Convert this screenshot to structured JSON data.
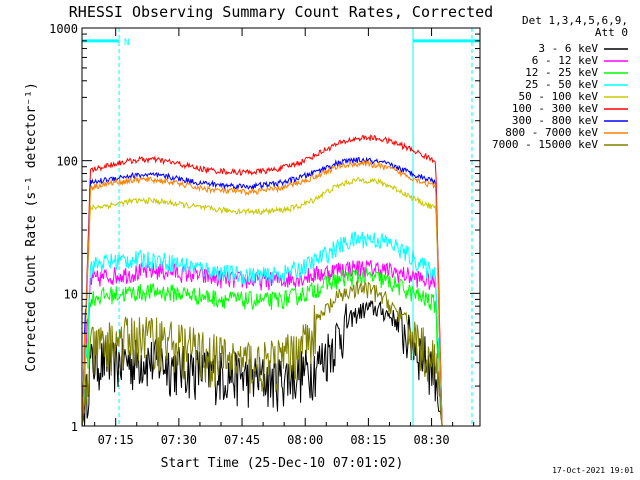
{
  "chart_data": {
    "type": "line",
    "title": "RHESSI Observing Summary Count Rates, Corrected",
    "xlabel": "Start Time (25-Dec-10 07:01:02)",
    "ylabel": "Corrected Count Rate (s⁻¹ detector⁻¹)",
    "y_scale": "log",
    "ylim": [
      1,
      1000
    ],
    "xlim_minutes": [
      7.0,
      101.5
    ],
    "x_ticks": [
      {
        "label": "07:15",
        "minute": 15
      },
      {
        "label": "07:30",
        "minute": 30
      },
      {
        "label": "07:45",
        "minute": 45
      },
      {
        "label": "08:00",
        "minute": 60
      },
      {
        "label": "08:15",
        "minute": 75
      },
      {
        "label": "08:30",
        "minute": 90
      }
    ],
    "y_ticks": [
      {
        "label": "1",
        "value": 1
      },
      {
        "label": "10",
        "value": 10
      },
      {
        "label": "100",
        "value": 100
      },
      {
        "label": "1000",
        "value": 1000
      }
    ],
    "legend_header": [
      "Det 1,3,4,5,6,9,",
      "Att 0"
    ],
    "legend_placement": "right",
    "series": [
      {
        "name": "3 - 6 keV",
        "color": "#000000",
        "x": [
          7.0,
          9,
          11,
          13,
          15,
          17,
          19,
          21,
          23,
          25,
          27,
          29,
          31,
          33,
          35,
          37,
          39,
          41,
          43,
          45,
          47,
          49,
          51,
          53,
          55,
          57,
          59,
          61,
          63,
          65,
          67,
          69,
          71,
          73,
          75,
          77,
          79,
          81,
          83,
          85,
          87,
          89,
          91,
          92.5
        ],
        "y": [
          1.0,
          3.0,
          3.2,
          3.1,
          3.0,
          3.2,
          3.1,
          3.3,
          3.2,
          3.1,
          3.0,
          2.9,
          2.8,
          2.8,
          2.7,
          2.6,
          2.6,
          2.5,
          2.5,
          2.4,
          2.4,
          2.4,
          2.3,
          2.3,
          2.4,
          2.5,
          2.6,
          2.7,
          3.0,
          3.6,
          4.5,
          5.5,
          6.5,
          7.3,
          7.8,
          7.6,
          7.2,
          6.5,
          5.5,
          4.6,
          3.8,
          3.2,
          2.6,
          1.0
        ]
      },
      {
        "name": "6 - 12 keV",
        "color": "#ff00ff",
        "x": [
          7.0,
          9,
          11,
          13,
          15,
          17,
          19,
          21,
          23,
          25,
          27,
          29,
          31,
          33,
          35,
          37,
          39,
          41,
          43,
          45,
          47,
          49,
          51,
          53,
          55,
          57,
          59,
          61,
          63,
          65,
          67,
          69,
          71,
          73,
          75,
          77,
          79,
          81,
          83,
          85,
          87,
          89,
          91,
          92.5
        ],
        "y": [
          1.0,
          12.5,
          13.0,
          13.5,
          13.7,
          14.0,
          14.2,
          14.5,
          14.7,
          14.8,
          14.7,
          14.5,
          14.2,
          14.0,
          13.6,
          13.3,
          13.0,
          12.8,
          12.7,
          12.6,
          12.6,
          12.5,
          12.5,
          12.6,
          12.7,
          13.0,
          13.2,
          13.6,
          14.0,
          14.5,
          15.0,
          15.4,
          15.6,
          15.7,
          15.6,
          15.4,
          15.0,
          14.5,
          14.0,
          13.5,
          13.0,
          12.5,
          12.0,
          1.0
        ]
      },
      {
        "name": "12 - 25 keV",
        "color": "#00ff00",
        "x": [
          7.0,
          9,
          11,
          13,
          15,
          17,
          19,
          21,
          23,
          25,
          27,
          29,
          31,
          33,
          35,
          37,
          39,
          41,
          43,
          45,
          47,
          49,
          51,
          53,
          55,
          57,
          59,
          61,
          63,
          65,
          67,
          69,
          71,
          73,
          75,
          77,
          79,
          81,
          83,
          85,
          87,
          89,
          91,
          92.5
        ],
        "y": [
          1.0,
          9.2,
          9.5,
          9.7,
          9.9,
          10.0,
          10.1,
          10.2,
          10.3,
          10.3,
          10.2,
          10.1,
          10.0,
          9.8,
          9.6,
          9.4,
          9.2,
          9.1,
          9.0,
          8.9,
          8.9,
          8.8,
          8.8,
          8.9,
          9.1,
          9.4,
          9.8,
          10.3,
          11.0,
          11.8,
          12.5,
          13.0,
          13.3,
          13.5,
          13.3,
          13.0,
          12.4,
          11.8,
          11.0,
          10.2,
          9.5,
          8.9,
          8.3,
          1.0
        ]
      },
      {
        "name": "25 - 50 keV",
        "color": "#00ffff",
        "x": [
          7.0,
          9,
          11,
          13,
          15,
          17,
          19,
          21,
          23,
          25,
          27,
          29,
          31,
          33,
          35,
          37,
          39,
          41,
          43,
          45,
          47,
          49,
          51,
          53,
          55,
          57,
          59,
          61,
          63,
          65,
          67,
          69,
          71,
          73,
          75,
          77,
          79,
          81,
          83,
          85,
          87,
          89,
          91,
          92.5
        ],
        "y": [
          1.0,
          16.0,
          16.8,
          17.3,
          17.6,
          17.8,
          18.0,
          18.1,
          18.0,
          17.8,
          17.5,
          17.0,
          16.5,
          16.0,
          15.5,
          15.0,
          14.6,
          14.2,
          14.0,
          13.8,
          13.7,
          13.6,
          13.6,
          13.8,
          14.2,
          14.8,
          15.6,
          16.6,
          18.0,
          19.8,
          21.8,
          23.5,
          25.0,
          25.8,
          26.0,
          25.5,
          24.5,
          23.0,
          21.0,
          19.0,
          17.0,
          15.3,
          14.0,
          1.0
        ]
      },
      {
        "name": "50 - 100 keV",
        "color": "#c8c800",
        "x": [
          7.0,
          9,
          11,
          13,
          15,
          17,
          19,
          21,
          23,
          25,
          27,
          29,
          31,
          33,
          35,
          37,
          39,
          41,
          43,
          45,
          47,
          49,
          51,
          53,
          55,
          57,
          59,
          61,
          63,
          65,
          67,
          69,
          71,
          73,
          75,
          77,
          79,
          81,
          83,
          85,
          87,
          89,
          91,
          92.5
        ],
        "y": [
          1.0,
          44.0,
          45.0,
          46.0,
          47.0,
          48.5,
          49.5,
          50.0,
          50.0,
          49.5,
          48.5,
          47.5,
          46.5,
          45.5,
          44.5,
          43.5,
          42.8,
          42.2,
          41.8,
          41.6,
          41.5,
          41.5,
          41.6,
          42.0,
          42.8,
          44.0,
          46.0,
          49.0,
          53.0,
          58.0,
          63.0,
          67.0,
          70.0,
          71.5,
          71.0,
          69.5,
          66.5,
          62.5,
          58.0,
          53.5,
          49.5,
          46.5,
          44.0,
          1.0
        ]
      },
      {
        "name": "100 - 300 keV",
        "color": "#ff0000",
        "x": [
          7.0,
          9,
          11,
          13,
          15,
          17,
          19,
          21,
          23,
          25,
          27,
          29,
          31,
          33,
          35,
          37,
          39,
          41,
          43,
          45,
          47,
          49,
          51,
          53,
          55,
          57,
          59,
          61,
          63,
          65,
          67,
          69,
          71,
          73,
          75,
          77,
          79,
          81,
          83,
          85,
          87,
          89,
          91,
          92.5
        ],
        "y": [
          1.0,
          85,
          88,
          92,
          95,
          98,
          100,
          102,
          102,
          101,
          99,
          96,
          93,
          90,
          87,
          85,
          84,
          83,
          82,
          82,
          82,
          83,
          84,
          86,
          89,
          93,
          98,
          105,
          113,
          122,
          131,
          138,
          144,
          148,
          149,
          147,
          143,
          137,
          130,
          122,
          114,
          106,
          99,
          1.0
        ]
      },
      {
        "name": "300 - 800 keV",
        "color": "#0000ff",
        "x": [
          7.0,
          9,
          11,
          13,
          15,
          17,
          19,
          21,
          23,
          25,
          27,
          29,
          31,
          33,
          35,
          37,
          39,
          41,
          43,
          45,
          47,
          49,
          51,
          53,
          55,
          57,
          59,
          61,
          63,
          65,
          67,
          69,
          71,
          73,
          75,
          77,
          79,
          81,
          83,
          85,
          87,
          89,
          91,
          92.5
        ],
        "y": [
          1.0,
          68,
          70,
          72,
          74,
          76,
          77,
          78,
          78,
          77,
          76,
          74,
          72,
          70,
          68,
          67,
          66,
          65,
          65,
          64,
          64,
          65,
          66,
          67,
          69,
          72,
          75,
          79,
          84,
          89,
          94,
          98,
          100,
          101,
          100,
          98,
          95,
          91,
          86,
          81,
          77,
          73,
          70,
          1.0
        ]
      },
      {
        "name": "800 - 7000 keV",
        "color": "#ff8000",
        "x": [
          7.0,
          9,
          11,
          13,
          15,
          17,
          19,
          21,
          23,
          25,
          27,
          29,
          31,
          33,
          35,
          37,
          39,
          41,
          43,
          45,
          47,
          49,
          51,
          53,
          55,
          57,
          59,
          61,
          63,
          65,
          67,
          69,
          71,
          73,
          75,
          77,
          79,
          81,
          83,
          85,
          87,
          89,
          91,
          92.5
        ],
        "y": [
          1.0,
          63,
          65,
          67,
          69,
          70,
          71,
          72,
          72,
          71,
          70,
          68,
          66,
          64,
          62,
          61,
          60,
          59,
          59,
          58,
          58,
          59,
          60,
          61,
          63,
          66,
          69,
          73,
          78,
          83,
          88,
          92,
          94,
          95,
          94,
          92,
          89,
          85,
          80,
          75,
          71,
          67,
          64,
          1.0
        ]
      },
      {
        "name": "7000 - 15000 keV",
        "color": "#808000",
        "x": [
          7.0,
          9,
          11,
          13,
          15,
          17,
          19,
          21,
          23,
          25,
          27,
          29,
          31,
          33,
          35,
          37,
          39,
          41,
          43,
          45,
          47,
          49,
          51,
          53,
          55,
          57,
          59,
          61,
          63,
          65,
          67,
          69,
          71,
          73,
          75,
          77,
          79,
          81,
          83,
          85,
          87,
          89,
          91,
          92.5
        ],
        "y": [
          1.0,
          3.8,
          4.0,
          4.2,
          4.4,
          4.6,
          4.7,
          4.8,
          4.8,
          4.7,
          4.5,
          4.3,
          4.1,
          3.9,
          3.7,
          3.5,
          3.4,
          3.3,
          3.2,
          3.1,
          3.1,
          3.0,
          3.0,
          3.1,
          3.3,
          3.6,
          4.2,
          5.0,
          6.2,
          7.5,
          8.8,
          9.8,
          10.5,
          10.8,
          10.6,
          10.0,
          9.0,
          7.8,
          6.5,
          5.3,
          4.4,
          3.6,
          3.0,
          1.0
        ]
      }
    ],
    "annotations": [
      {
        "type": "eclipse_bar",
        "color": "#00ffff",
        "y": 800,
        "x_start": 7.0,
        "x_end": 15.8,
        "label": "N"
      },
      {
        "type": "eclipse_bar",
        "color": "#00ffff",
        "y": 800,
        "x_start": 85.6,
        "x_end": 101.5
      },
      {
        "type": "vline_dashed",
        "color": "#00ffff",
        "x": 15.8
      },
      {
        "type": "vline_solid",
        "color": "#00ffff",
        "x": 85.6
      },
      {
        "type": "vline_dashed",
        "color": "#00ffff",
        "x": 99.6
      },
      {
        "type": "vline_solid",
        "color": "#00ffff",
        "x": 7.0
      }
    ]
  },
  "footer": {
    "date_stamp": "17-Oct-2021 19:01"
  }
}
